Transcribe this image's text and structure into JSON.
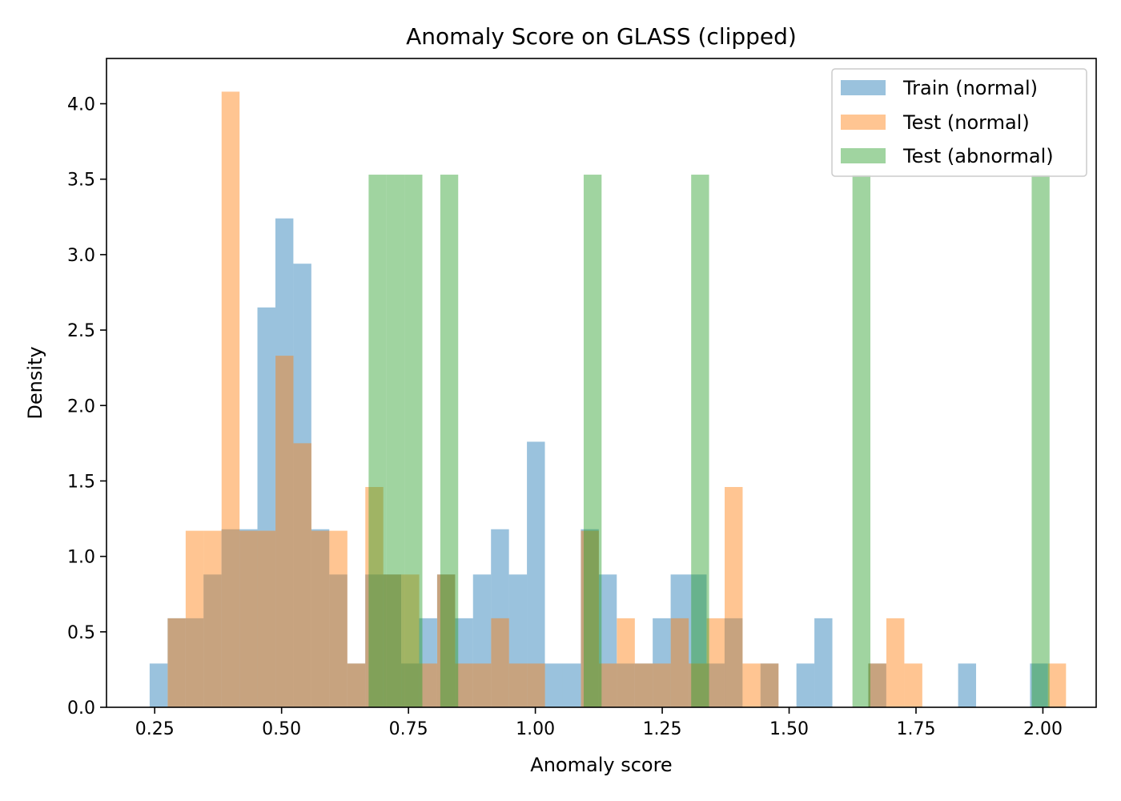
{
  "chart_data": {
    "type": "bar",
    "title": "Anomaly Score on GLASS (clipped)",
    "xlabel": "Anomaly score",
    "ylabel": "Density",
    "xlim": [
      0.155,
      2.105
    ],
    "ylim": [
      0,
      4.3
    ],
    "xticks": [
      0.25,
      0.5,
      0.75,
      1.0,
      1.25,
      1.5,
      1.75,
      2.0
    ],
    "xtick_labels": [
      "0.25",
      "0.50",
      "0.75",
      "1.00",
      "1.25",
      "1.50",
      "1.75",
      "2.00"
    ],
    "yticks": [
      0.0,
      0.5,
      1.0,
      1.5,
      2.0,
      2.5,
      3.0,
      3.5,
      4.0
    ],
    "ytick_labels": [
      "0.0",
      "0.5",
      "1.0",
      "1.5",
      "2.0",
      "2.5",
      "3.0",
      "3.5",
      "4.0"
    ],
    "grid": false,
    "legend_position": "top-right",
    "series": [
      {
        "name": "Train (normal)",
        "color": "#1f77b4",
        "opacity": 0.45,
        "bin_start": 0.24,
        "bin_width": 0.0354,
        "values": [
          0.29,
          0.59,
          0.59,
          0.88,
          1.18,
          1.18,
          2.65,
          3.24,
          2.94,
          1.18,
          0.88,
          0.29,
          0.88,
          0.88,
          0.29,
          0.59,
          0.88,
          0.59,
          0.88,
          1.18,
          0.88,
          1.76,
          0.29,
          0.29,
          1.18,
          0.88,
          0.29,
          0.29,
          0.59,
          0.88,
          0.88,
          0.29,
          0.59,
          0.0,
          0.29,
          0.0,
          0.29,
          0.59,
          0.0,
          0.0,
          0.29,
          0.0,
          0.0,
          0.0,
          0.0,
          0.29,
          0.0,
          0.0,
          0.0,
          0.29
        ]
      },
      {
        "name": "Test (normal)",
        "color": "#ff7f0e",
        "opacity": 0.45,
        "bin_start": 0.2756,
        "bin_width": 0.0354,
        "values": [
          0.59,
          1.17,
          1.17,
          4.08,
          1.17,
          1.17,
          2.33,
          1.75,
          1.17,
          1.17,
          0.29,
          1.46,
          0.88,
          0.88,
          0.29,
          0.88,
          0.29,
          0.29,
          0.59,
          0.29,
          0.29,
          0.0,
          0.0,
          1.17,
          0.29,
          0.59,
          0.29,
          0.29,
          0.59,
          0.29,
          0.59,
          1.46,
          0.29,
          0.29,
          0.0,
          0.0,
          0.0,
          0.0,
          0.0,
          0.29,
          0.59,
          0.29,
          0.0,
          0.0,
          0.0,
          0.0,
          0.0,
          0.0,
          0.0,
          0.29
        ]
      },
      {
        "name": "Test (abnormal)",
        "color": "#2ca02c",
        "opacity": 0.45,
        "bars": [
          {
            "x0": 0.6715,
            "x1": 0.7068,
            "value": 3.53
          },
          {
            "x0": 0.7068,
            "x1": 0.7421,
            "value": 3.53
          },
          {
            "x0": 0.7421,
            "x1": 0.7774,
            "value": 3.53
          },
          {
            "x0": 0.8127,
            "x1": 0.848,
            "value": 3.53
          },
          {
            "x0": 1.0952,
            "x1": 1.1305,
            "value": 3.53
          },
          {
            "x0": 1.307,
            "x1": 1.3423,
            "value": 3.53
          },
          {
            "x0": 1.6248,
            "x1": 1.6601,
            "value": 3.53
          },
          {
            "x0": 1.9779,
            "x1": 2.0132,
            "value": 3.53
          }
        ]
      }
    ]
  }
}
